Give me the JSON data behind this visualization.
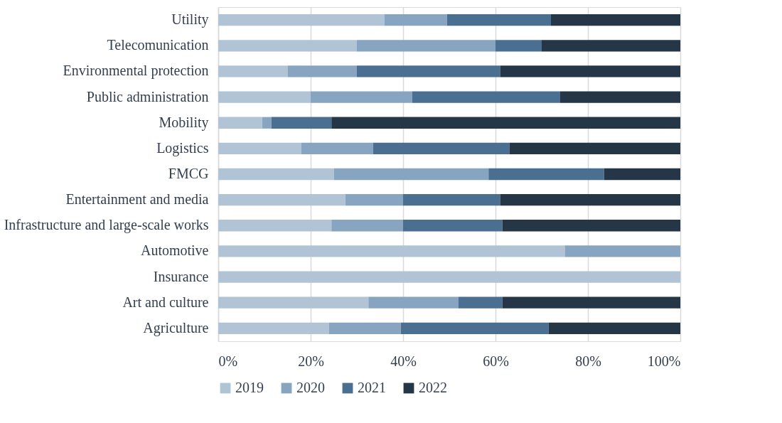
{
  "chart_data": {
    "type": "bar",
    "orientation": "horizontal",
    "stacked": true,
    "categories": [
      "Utility",
      "Telecomunication",
      "Environmental protection",
      "Public administration",
      "Mobility",
      "Logistics",
      "FMCG",
      "Entertainment and media",
      "Infrastructure and large-scale works",
      "Automotive",
      "Insurance",
      "Art and culture",
      "Agriculture"
    ],
    "series": [
      {
        "name": "2019",
        "color": "#b0c4d6",
        "values": [
          36,
          30,
          15,
          20,
          9.5,
          18,
          25,
          27.5,
          24.5,
          75,
          100,
          32.5,
          24
        ]
      },
      {
        "name": "2020",
        "color": "#87a5c1",
        "values": [
          13.5,
          30,
          15,
          22,
          2,
          15.5,
          33.5,
          12.5,
          15.5,
          25,
          0,
          19.5,
          15.5
        ]
      },
      {
        "name": "2021",
        "color": "#4a6f90",
        "values": [
          22.5,
          10,
          31,
          32,
          13,
          29.5,
          25,
          21,
          21.5,
          0,
          0,
          9.5,
          32
        ]
      },
      {
        "name": "2022",
        "color": "#253746",
        "values": [
          28,
          30,
          39,
          26,
          75.5,
          37,
          16.5,
          39,
          38.5,
          0,
          0,
          38.5,
          28.5
        ]
      }
    ],
    "xlim": [
      0,
      100
    ],
    "xticks": [
      {
        "value": 0,
        "label": "0%"
      },
      {
        "value": 20,
        "label": "20%"
      },
      {
        "value": 40,
        "label": "40%"
      },
      {
        "value": 60,
        "label": "60%"
      },
      {
        "value": 80,
        "label": "80%"
      },
      {
        "value": 100,
        "label": "100%"
      }
    ],
    "grid": "x",
    "legend": "bottom"
  }
}
